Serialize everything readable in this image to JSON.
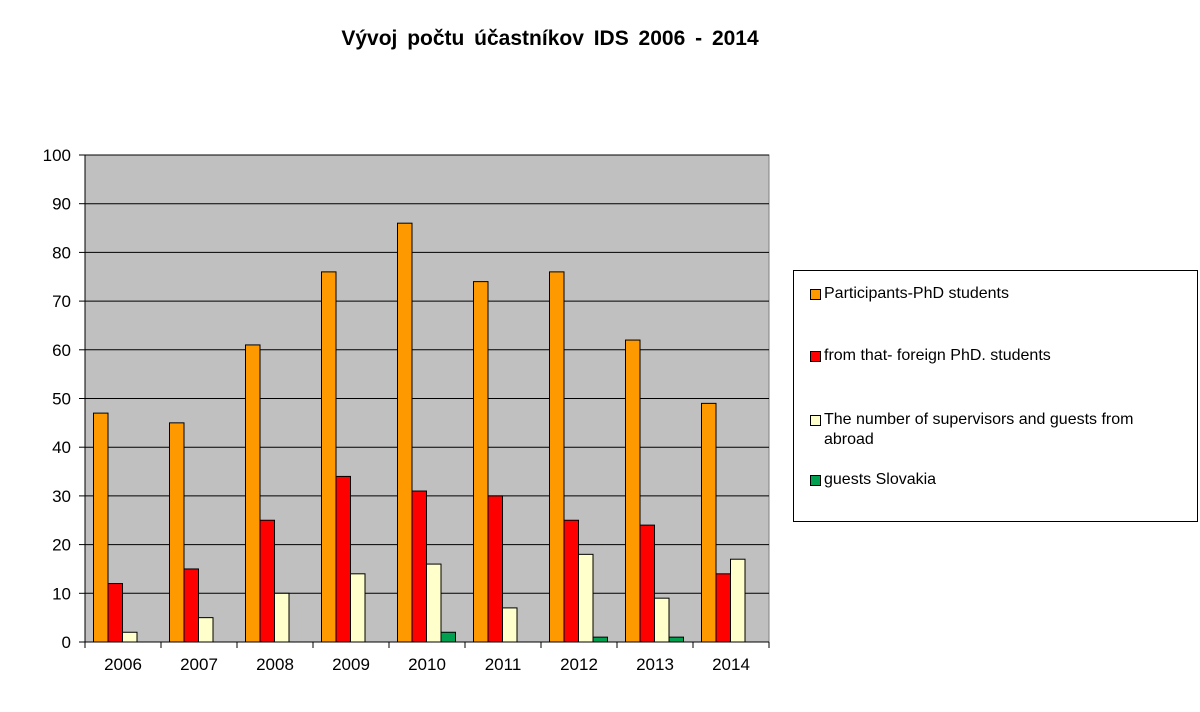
{
  "chart_data": {
    "type": "bar",
    "title": "Vývoj počtu účastníkov IDS 2006 - 2014",
    "xlabel": "",
    "ylabel": "",
    "ylim": [
      0,
      100
    ],
    "yticks": [
      0,
      10,
      20,
      30,
      40,
      50,
      60,
      70,
      80,
      90,
      100
    ],
    "grid": true,
    "legend_position": "right",
    "categories": [
      "2006",
      "2007",
      "2008",
      "2009",
      "2010",
      "2011",
      "2012",
      "2013",
      "2014"
    ],
    "series": [
      {
        "name": "Participants-PhD students",
        "color": "#ff9900",
        "values": [
          47,
          45,
          61,
          76,
          86,
          74,
          76,
          62,
          49
        ]
      },
      {
        "name": "from that- foreign PhD. students",
        "color": "#ff0000",
        "values": [
          12,
          15,
          25,
          34,
          31,
          30,
          25,
          24,
          14
        ]
      },
      {
        "name": "The number of supervisors and guests from abroad",
        "color": "#ffffcc",
        "values": [
          2,
          5,
          10,
          14,
          16,
          7,
          18,
          9,
          17
        ]
      },
      {
        "name": "guests Slovakia",
        "color": "#00a050",
        "values": [
          0,
          0,
          0,
          0,
          2,
          0,
          1,
          1,
          0
        ]
      }
    ]
  }
}
